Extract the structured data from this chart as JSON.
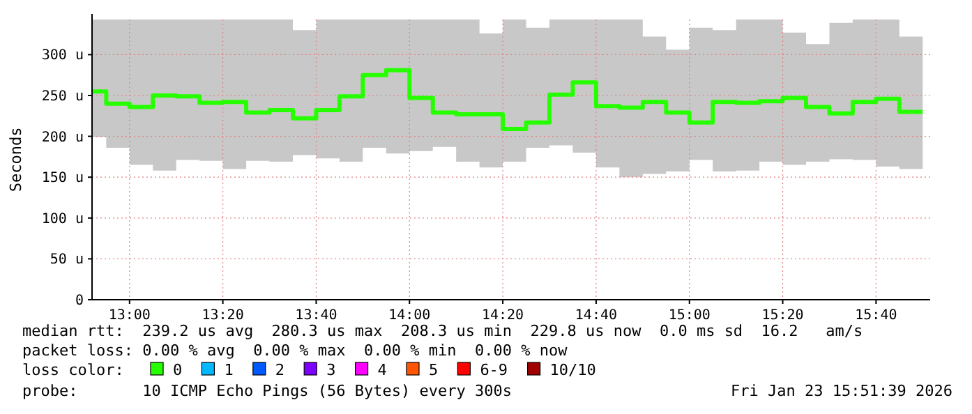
{
  "chart_data": {
    "type": "step",
    "ylabel": "Seconds",
    "legend_title": "loss color:",
    "legend": "bottom",
    "grid": true,
    "marker": "none",
    "line_style": "solid",
    "x": [
      12.8667,
      12.9167,
      13,
      13.0833,
      13.1667,
      13.25,
      13.3333,
      13.4167,
      13.5,
      13.5833,
      13.6667,
      13.75,
      13.8333,
      13.9167,
      14,
      14.0833,
      14.1667,
      14.25,
      14.3333,
      14.4167,
      14.5,
      14.5833,
      14.6667,
      14.75,
      14.8333,
      14.9167,
      15,
      15.0833,
      15.1667,
      15.25,
      15.3333,
      15.4167,
      15.5,
      15.5833,
      15.6667,
      15.75,
      15.8333
    ],
    "xlim": [
      12.866,
      15.86
    ],
    "xticks": [
      {
        "value": 13,
        "label": "13:00"
      },
      {
        "value": 13.3333,
        "label": "13:20"
      },
      {
        "value": 13.6667,
        "label": "13:40"
      },
      {
        "value": 14,
        "label": "14:00"
      },
      {
        "value": 14.3333,
        "label": "14:20"
      },
      {
        "value": 14.6667,
        "label": "14:40"
      },
      {
        "value": 15,
        "label": "15:00"
      },
      {
        "value": 15.3333,
        "label": "15:20"
      },
      {
        "value": 15.6667,
        "label": "15:40"
      }
    ],
    "ylim": [
      0,
      343
    ],
    "yticks": [
      0,
      {
        "value": 50,
        "label": "50 u"
      },
      {
        "value": 100,
        "label": "100 u"
      },
      {
        "value": 150,
        "label": "150 u"
      },
      {
        "value": 200,
        "label": "200 u"
      },
      {
        "value": 250,
        "label": "250 u"
      },
      {
        "value": 300,
        "label": "300 u"
      }
    ],
    "series": [
      {
        "name": "0",
        "color": "#26ff00",
        "values": [
          255,
          240,
          236,
          250,
          249,
          241,
          242,
          229,
          232,
          222,
          232,
          249,
          275,
          281,
          247,
          229,
          227,
          227,
          209,
          217,
          251,
          266,
          237,
          235,
          242,
          229,
          217,
          242,
          241,
          243,
          247,
          236,
          228,
          242,
          246,
          230,
          230
        ],
        "lower": [
          199,
          186,
          165,
          158,
          171,
          170,
          160,
          170,
          169,
          177,
          173,
          169,
          186,
          179,
          182,
          187,
          169,
          162,
          169,
          186,
          189,
          180,
          162,
          150,
          154,
          157,
          171,
          157,
          158,
          169,
          165,
          169,
          172,
          171,
          163,
          160,
          160
        ],
        "upper": [
          343,
          343,
          343,
          343,
          343,
          343,
          343,
          343,
          343,
          330,
          343,
          343,
          343,
          343,
          343,
          343,
          343,
          326,
          343,
          333,
          343,
          343,
          343,
          343,
          322,
          306,
          333,
          330,
          343,
          343,
          327,
          313,
          339,
          343,
          343,
          322,
          322
        ]
      },
      {
        "name": "1",
        "color": "#00b8ff",
        "values": [
          null,
          null,
          null,
          null,
          null,
          null,
          null,
          null,
          null,
          null,
          null,
          null,
          null,
          null,
          null,
          null,
          null,
          null,
          null,
          null,
          null,
          null,
          null,
          null,
          null,
          null,
          null,
          null,
          null,
          null,
          null,
          null,
          null,
          null,
          null,
          null,
          null
        ]
      },
      {
        "name": "2",
        "color": "#0059ff",
        "values": [
          null,
          null,
          null,
          null,
          null,
          null,
          null,
          null,
          null,
          null,
          null,
          null,
          null,
          null,
          null,
          null,
          null,
          null,
          null,
          null,
          null,
          null,
          null,
          null,
          null,
          null,
          null,
          null,
          null,
          null,
          null,
          null,
          null,
          null,
          null,
          null,
          null
        ]
      },
      {
        "name": "3",
        "color": "#7e00ff",
        "values": [
          null,
          null,
          null,
          null,
          null,
          null,
          null,
          null,
          null,
          null,
          null,
          null,
          null,
          null,
          null,
          null,
          null,
          null,
          null,
          null,
          null,
          null,
          null,
          null,
          null,
          null,
          null,
          null,
          null,
          null,
          null,
          null,
          null,
          null,
          null,
          null,
          null
        ]
      },
      {
        "name": "4",
        "color": "#ff00ff",
        "values": [
          null,
          null,
          null,
          null,
          null,
          null,
          null,
          null,
          null,
          null,
          null,
          null,
          null,
          null,
          null,
          null,
          null,
          null,
          null,
          null,
          null,
          null,
          null,
          null,
          null,
          null,
          null,
          null,
          null,
          null,
          null,
          null,
          null,
          null,
          null,
          null,
          null
        ]
      },
      {
        "name": "5",
        "color": "#ff5500",
        "values": [
          null,
          null,
          null,
          null,
          null,
          null,
          null,
          null,
          null,
          null,
          null,
          null,
          null,
          null,
          null,
          null,
          null,
          null,
          null,
          null,
          null,
          null,
          null,
          null,
          null,
          null,
          null,
          null,
          null,
          null,
          null,
          null,
          null,
          null,
          null,
          null,
          null
        ]
      },
      {
        "name": "6-9",
        "color": "#ff0000",
        "values": [
          null,
          null,
          null,
          null,
          null,
          null,
          null,
          null,
          null,
          null,
          null,
          null,
          null,
          null,
          null,
          null,
          null,
          null,
          null,
          null,
          null,
          null,
          null,
          null,
          null,
          null,
          null,
          null,
          null,
          null,
          null,
          null,
          null,
          null,
          null,
          null,
          null
        ]
      },
      {
        "name": "10/10",
        "color": "#a00000",
        "values": [
          null,
          null,
          null,
          null,
          null,
          null,
          null,
          null,
          null,
          null,
          null,
          null,
          null,
          null,
          null,
          null,
          null,
          null,
          null,
          null,
          null,
          null,
          null,
          null,
          null,
          null,
          null,
          null,
          null,
          null,
          null,
          null,
          null,
          null,
          null,
          null,
          null
        ]
      }
    ],
    "annotations": [
      "median rtt:  239.2 us avg  280.3 us max  208.3 us min  229.8 us now  0.0 ms sd  16.2   am/s",
      "packet loss: 0.00 % avg  0.00 % max  0.00 % min  0.00 % now",
      "probe:       10 ICMP Echo Pings (56 Bytes) every 300s",
      "Fri Jan 23 15:51:39 2026"
    ]
  }
}
